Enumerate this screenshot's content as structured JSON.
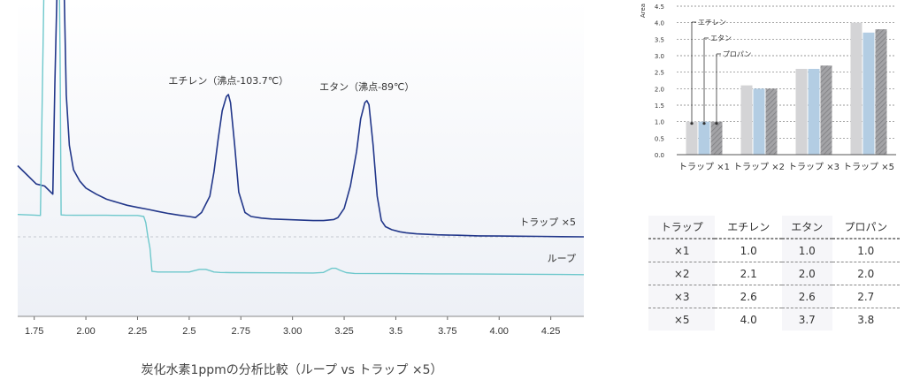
{
  "chart_data": [
    {
      "type": "line",
      "title": "",
      "xlabel": "",
      "ylabel": "",
      "xlim": [
        1.67,
        4.41
      ],
      "x_ticks": [
        "1.75",
        "2.00",
        "2.25",
        "2.5",
        "2.75",
        "3.00",
        "3.25",
        "3.5",
        "3.75",
        "4.00",
        "4.25"
      ],
      "x_tick_values": [
        1.75,
        2.0,
        2.25,
        2.5,
        2.75,
        3.0,
        3.25,
        3.5,
        3.75,
        4.0,
        4.25
      ],
      "grid": false,
      "series": [
        {
          "name": "トラップ ×5",
          "color": "#22378a",
          "x": [
            1.67,
            1.72,
            1.76,
            1.8,
            1.84,
            1.85,
            1.86,
            1.87,
            1.88,
            1.885,
            1.895,
            1.905,
            1.92,
            1.94,
            1.97,
            2.0,
            2.05,
            2.1,
            2.15,
            2.2,
            2.25,
            2.3,
            2.35,
            2.4,
            2.45,
            2.5,
            2.53,
            2.56,
            2.6,
            2.62,
            2.64,
            2.66,
            2.68,
            2.69,
            2.7,
            2.72,
            2.74,
            2.77,
            2.8,
            2.85,
            2.9,
            3.0,
            3.1,
            3.15,
            3.2,
            3.22,
            3.25,
            3.28,
            3.31,
            3.33,
            3.35,
            3.36,
            3.37,
            3.39,
            3.41,
            3.43,
            3.45,
            3.48,
            3.52,
            3.55,
            3.6,
            3.7,
            3.8,
            3.9,
            4.0,
            4.1,
            4.2,
            4.3,
            4.41
          ],
          "y": [
            0.35,
            0.3,
            0.26,
            0.25,
            0.21,
            0.75,
            1.2,
            1.5,
            1.7,
            1.8,
            1.2,
            0.7,
            0.45,
            0.33,
            0.275,
            0.24,
            0.21,
            0.185,
            0.17,
            0.155,
            0.145,
            0.135,
            0.125,
            0.115,
            0.107,
            0.1,
            0.095,
            0.12,
            0.2,
            0.32,
            0.48,
            0.62,
            0.69,
            0.7,
            0.66,
            0.45,
            0.22,
            0.12,
            0.1,
            0.092,
            0.088,
            0.084,
            0.08,
            0.08,
            0.085,
            0.095,
            0.14,
            0.25,
            0.42,
            0.58,
            0.66,
            0.67,
            0.65,
            0.45,
            0.2,
            0.08,
            0.05,
            0.035,
            0.025,
            0.02,
            0.015,
            0.01,
            0.008,
            0.005,
            0.004,
            0.003,
            0.002,
            0.001,
            0.0
          ]
        },
        {
          "name": "ループ",
          "color": "#6ec8cc",
          "x": [
            1.67,
            1.75,
            1.78,
            1.79,
            1.8,
            1.81,
            1.83,
            1.85,
            1.86,
            1.87,
            1.875,
            1.88,
            1.9,
            1.95,
            2.0,
            2.1,
            2.2,
            2.25,
            2.28,
            2.29,
            2.3,
            2.31,
            2.32,
            2.35,
            2.4,
            2.5,
            2.52,
            2.55,
            2.58,
            2.6,
            2.62,
            2.65,
            2.7,
            2.9,
            3.1,
            3.15,
            3.17,
            3.19,
            3.21,
            3.23,
            3.26,
            3.3,
            3.5,
            3.7,
            3.9,
            4.1,
            4.3,
            4.41
          ],
          "y": [
            0.11,
            0.107,
            0.105,
            0.75,
            1.8,
            1.8,
            1.8,
            1.8,
            1.8,
            1.8,
            0.9,
            0.108,
            0.107,
            0.106,
            0.106,
            0.106,
            0.105,
            0.105,
            0.1,
            0.07,
            0.0,
            -0.055,
            -0.17,
            -0.173,
            -0.173,
            -0.173,
            -0.168,
            -0.16,
            -0.16,
            -0.166,
            -0.173,
            -0.175,
            -0.176,
            -0.177,
            -0.178,
            -0.175,
            -0.165,
            -0.155,
            -0.155,
            -0.165,
            -0.176,
            -0.18,
            -0.181,
            -0.182,
            -0.183,
            -0.184,
            -0.185,
            -0.186
          ]
        }
      ],
      "annotations": [
        {
          "text": "エチレン（沸点-103.7℃）",
          "x": 2.69,
          "y": 0.7
        },
        {
          "text": "エタン（沸点-89℃）",
          "x": 3.36,
          "y": 0.67
        }
      ],
      "baseline_dashed": true
    },
    {
      "type": "bar",
      "title": "",
      "xlabel": "",
      "ylabel": "Area",
      "ylim": [
        0,
        4.5
      ],
      "y_ticks": [
        "0.0",
        "0.5",
        "1.0",
        "1.5",
        "2.0",
        "2.5",
        "3.0",
        "3.5",
        "4.0",
        "4.5"
      ],
      "y_tick_values": [
        0,
        0.5,
        1.0,
        1.5,
        2.0,
        2.5,
        3.0,
        3.5,
        4.0,
        4.5
      ],
      "grid": true,
      "categories": [
        "トラップ ×1",
        "トラップ ×2",
        "トラップ ×3",
        "トラップ ×5"
      ],
      "series": [
        {
          "name": "エチレン",
          "color": "#d4d4d6",
          "values": [
            1.0,
            2.1,
            2.6,
            4.0
          ]
        },
        {
          "name": "エタン",
          "color": "#b3cde3",
          "values": [
            1.0,
            2.0,
            2.6,
            3.7
          ]
        },
        {
          "name": "プロパン",
          "color": "#9b9b9e",
          "hatched": true,
          "values": [
            1.0,
            2.0,
            2.7,
            3.8
          ]
        }
      ],
      "legend": "leader-lines-top-left"
    }
  ],
  "table": {
    "headers": [
      "トラップ",
      "エチレン",
      "エタン",
      "プロパン"
    ],
    "rows": [
      [
        "×1",
        "1.0",
        "1.0",
        "1.0"
      ],
      [
        "×2",
        "2.1",
        "2.0",
        "2.0"
      ],
      [
        "×3",
        "2.6",
        "2.6",
        "2.7"
      ],
      [
        "×5",
        "4.0",
        "3.7",
        "3.8"
      ]
    ]
  },
  "caption": "炭化水素1ppmの分析比較（ループ vs トラップ ×5）"
}
